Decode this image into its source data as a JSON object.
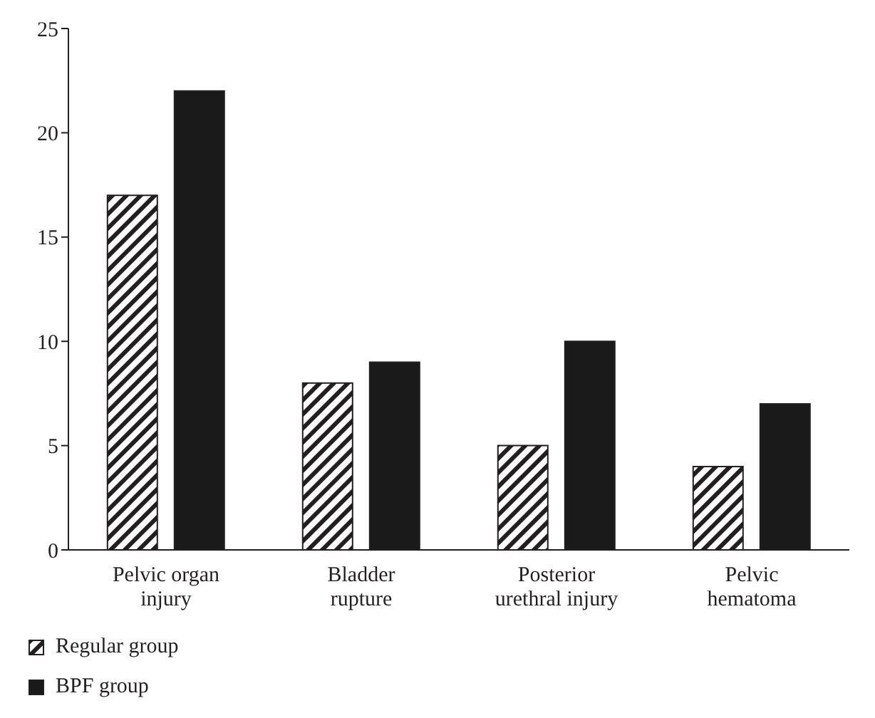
{
  "chart_data": {
    "type": "bar",
    "categories": [
      "Pelvic organ injury",
      "Bladder rupture",
      "Posterior urethral injury",
      "Pelvic hematoma"
    ],
    "series": [
      {
        "name": "Regular group",
        "color": "#231f20",
        "values": [
          17,
          8,
          5,
          4
        ]
      },
      {
        "name": "BPF group",
        "color": "#1a1a1a",
        "values": [
          22,
          9,
          10,
          7
        ]
      }
    ],
    "ylim": [
      0,
      25
    ],
    "yticks": [
      0,
      5,
      10,
      15,
      20,
      25
    ],
    "grid": false,
    "legend": "bottom left"
  }
}
